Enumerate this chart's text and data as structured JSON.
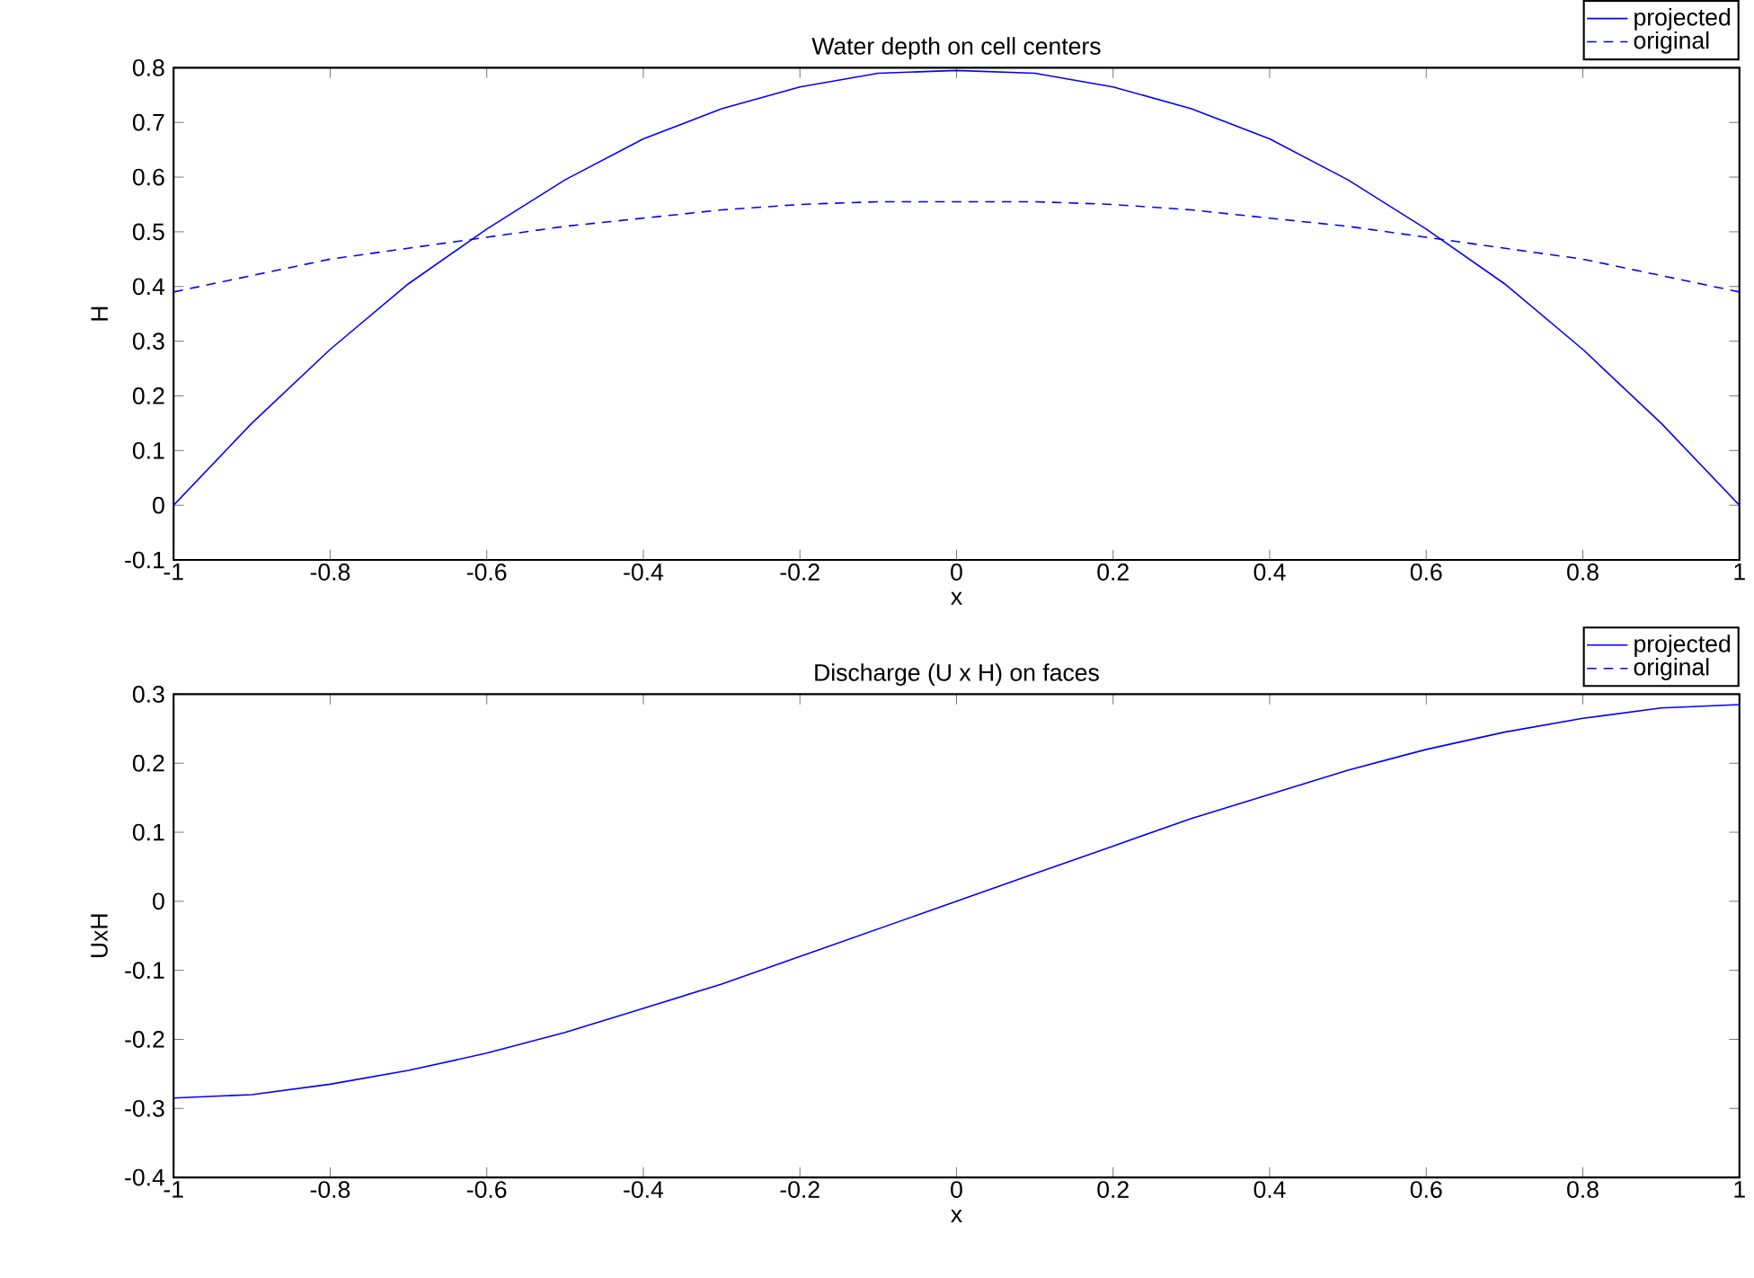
{
  "chart_data": [
    {
      "type": "line",
      "title": "Water depth on cell centers",
      "xlabel": "x",
      "ylabel": "H",
      "xlim": [
        -1,
        1
      ],
      "ylim": [
        -0.1,
        0.8
      ],
      "xticks": [
        -1,
        -0.8,
        -0.6,
        -0.4,
        -0.2,
        0,
        0.2,
        0.4,
        0.6,
        0.8,
        1
      ],
      "yticks": [
        -0.1,
        0,
        0.1,
        0.2,
        0.3,
        0.4,
        0.5,
        0.6,
        0.7,
        0.8
      ],
      "legend": "top right",
      "grid": false,
      "marker": "none",
      "x": [
        -1,
        -0.9,
        -0.8,
        -0.7,
        -0.6,
        -0.5,
        -0.4,
        -0.3,
        -0.2,
        -0.1,
        0,
        0.1,
        0.2,
        0.3,
        0.4,
        0.5,
        0.6,
        0.7,
        0.8,
        0.9,
        1
      ],
      "series": [
        {
          "name": "projected",
          "color": "#0000ff",
          "line_style": "solid",
          "values": [
            0,
            0.15,
            0.285,
            0.405,
            0.505,
            0.595,
            0.67,
            0.725,
            0.765,
            0.79,
            0.795,
            0.79,
            0.765,
            0.725,
            0.67,
            0.595,
            0.505,
            0.405,
            0.285,
            0.15,
            0
          ]
        },
        {
          "name": "original",
          "color": "#0000ff",
          "line_style": "dashed",
          "values": [
            0.39,
            0.42,
            0.45,
            0.47,
            0.49,
            0.51,
            0.525,
            0.54,
            0.55,
            0.555,
            0.555,
            0.555,
            0.55,
            0.54,
            0.525,
            0.51,
            0.49,
            0.47,
            0.45,
            0.42,
            0.39
          ]
        }
      ]
    },
    {
      "type": "line",
      "title": "Discharge (U x H) on faces",
      "xlabel": "x",
      "ylabel": "UxH",
      "xlim": [
        -1,
        1
      ],
      "ylim": [
        -0.4,
        0.3
      ],
      "xticks": [
        -1,
        -0.8,
        -0.6,
        -0.4,
        -0.2,
        0,
        0.2,
        0.4,
        0.6,
        0.8,
        1
      ],
      "yticks": [
        -0.4,
        -0.3,
        -0.2,
        -0.1,
        0,
        0.1,
        0.2,
        0.3
      ],
      "legend": "top right",
      "grid": false,
      "marker": "none",
      "x": [
        -1,
        -0.9,
        -0.8,
        -0.7,
        -0.6,
        -0.5,
        -0.4,
        -0.3,
        -0.2,
        -0.1,
        0,
        0.1,
        0.2,
        0.3,
        0.4,
        0.5,
        0.6,
        0.7,
        0.8,
        0.9,
        1
      ],
      "series": [
        {
          "name": "projected",
          "color": "#0000ff",
          "line_style": "solid",
          "values": [
            -0.285,
            -0.28,
            -0.265,
            -0.245,
            -0.22,
            -0.19,
            -0.155,
            -0.12,
            -0.08,
            -0.04,
            0,
            0.04,
            0.08,
            0.12,
            0.155,
            0.19,
            0.22,
            0.245,
            0.265,
            0.28,
            0.285
          ]
        },
        {
          "name": "original",
          "color": "#0000ff",
          "line_style": "dashed",
          "values": [
            null,
            null,
            null,
            null,
            null,
            null,
            null,
            null,
            null,
            null,
            null,
            null,
            null,
            null,
            null,
            null,
            null,
            null,
            null,
            null,
            null
          ]
        }
      ]
    }
  ]
}
